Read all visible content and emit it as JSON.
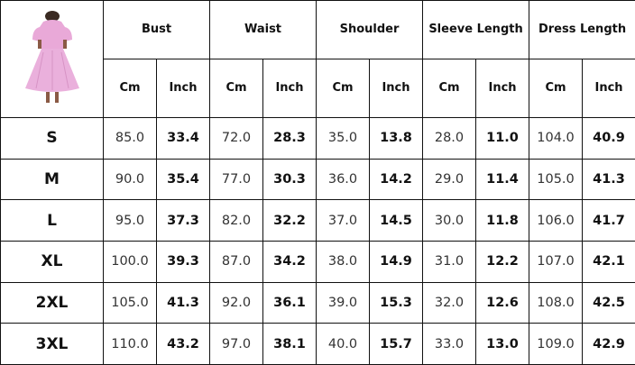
{
  "colors": {
    "dress": "#e9a9d8",
    "border": "#111111"
  },
  "headers": [
    "Bust",
    "Waist",
    "Shoulder",
    "Sleeve Length",
    "Dress Length"
  ],
  "units": {
    "cm": "Cm",
    "inch": "Inch"
  },
  "rows": [
    {
      "size": "S",
      "values": [
        "85.0",
        "33.4",
        "72.0",
        "28.3",
        "35.0",
        "13.8",
        "28.0",
        "11.0",
        "104.0",
        "40.9"
      ]
    },
    {
      "size": "M",
      "values": [
        "90.0",
        "35.4",
        "77.0",
        "30.3",
        "36.0",
        "14.2",
        "29.0",
        "11.4",
        "105.0",
        "41.3"
      ]
    },
    {
      "size": "L",
      "values": [
        "95.0",
        "37.3",
        "82.0",
        "32.2",
        "37.0",
        "14.5",
        "30.0",
        "11.8",
        "106.0",
        "41.7"
      ]
    },
    {
      "size": "XL",
      "values": [
        "100.0",
        "39.3",
        "87.0",
        "34.2",
        "38.0",
        "14.9",
        "31.0",
        "12.2",
        "107.0",
        "42.1"
      ]
    },
    {
      "size": "2XL",
      "values": [
        "105.0",
        "41.3",
        "92.0",
        "36.1",
        "39.0",
        "15.3",
        "32.0",
        "12.6",
        "108.0",
        "42.5"
      ]
    },
    {
      "size": "3XL",
      "values": [
        "110.0",
        "43.2",
        "97.0",
        "38.1",
        "40.0",
        "15.7",
        "33.0",
        "13.0",
        "109.0",
        "42.9"
      ]
    }
  ]
}
